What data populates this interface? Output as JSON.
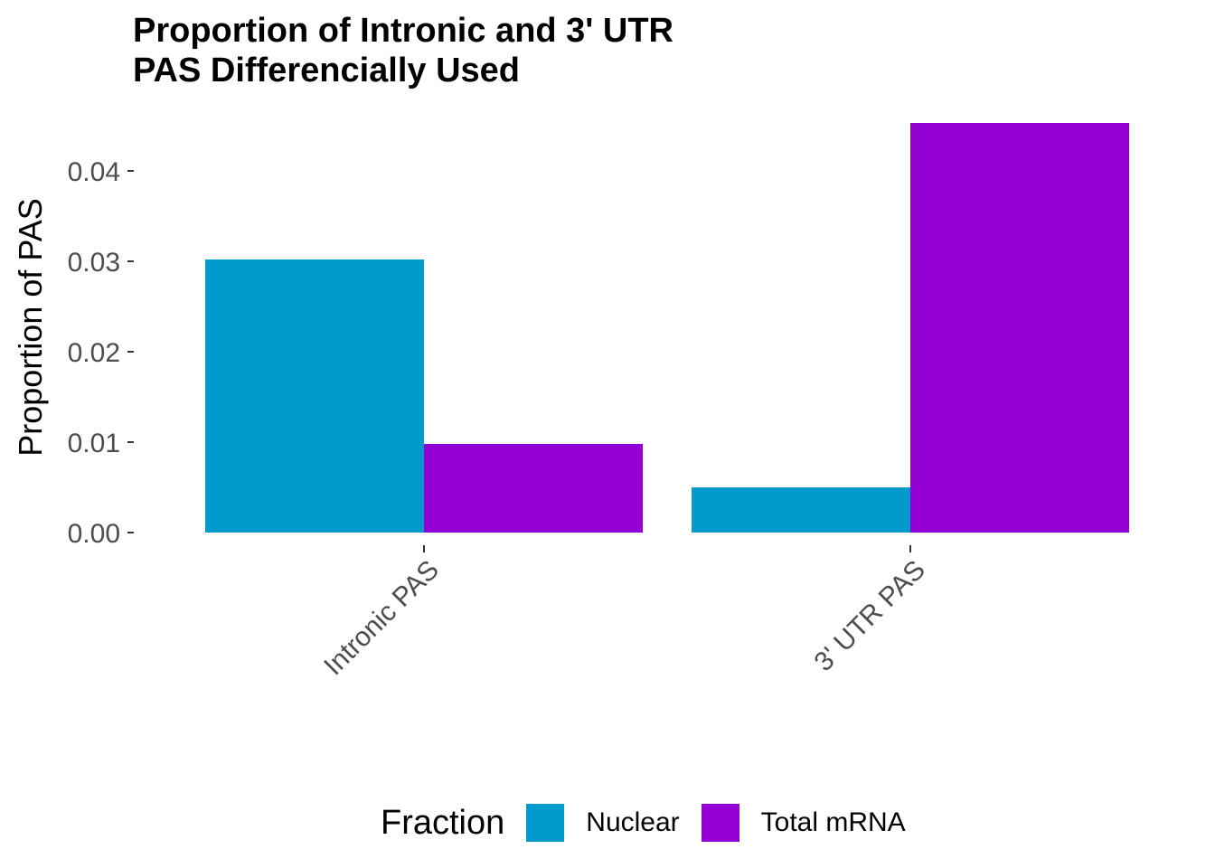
{
  "chart_data": {
    "type": "bar",
    "title": "Proportion of Intronic and 3' UTR\nPAS Differencially Used",
    "xlabel": "",
    "ylabel": "Proportion of PAS",
    "categories": [
      "Intronic PAS",
      "3' UTR PAS"
    ],
    "series": [
      {
        "name": "Nuclear",
        "values": [
          0.0302,
          0.005
        ],
        "color": "#009ACD"
      },
      {
        "name": "Total mRNA",
        "values": [
          0.0098,
          0.0453
        ],
        "color": "#9400D3"
      }
    ],
    "yticks": [
      "0.00",
      "0.01",
      "0.02",
      "0.03",
      "0.04"
    ],
    "ytick_values": [
      0,
      0.01,
      0.02,
      0.03,
      0.04
    ],
    "ylim": [
      0,
      0.0453
    ],
    "grid": false,
    "legend": {
      "title": "Fraction",
      "position": "bottom"
    }
  }
}
